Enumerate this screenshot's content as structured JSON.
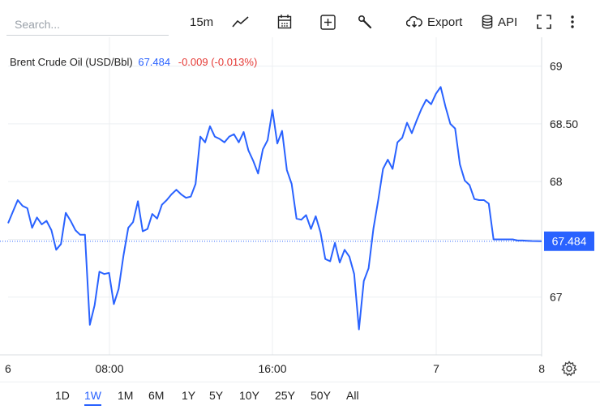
{
  "toolbar": {
    "search_placeholder": "Search...",
    "interval": "15m",
    "export_label": "Export",
    "api_label": "API"
  },
  "legend": {
    "name": "Brent Crude Oil (USD/Bbl)",
    "price": "67.484",
    "change": "-0.009 (-0.013%)"
  },
  "ranges": [
    "1D",
    "1W",
    "1M",
    "6M",
    "1Y",
    "5Y",
    "10Y",
    "25Y",
    "50Y",
    "All"
  ],
  "active_range": "1W",
  "colors": {
    "line": "#2962ff",
    "accent": "#2962ff",
    "negative": "#e53935",
    "grid": "#eceff2"
  },
  "chart_data": {
    "type": "line",
    "ylim": [
      66.5,
      69.25
    ],
    "y_ticks": [
      67,
      67.5,
      68,
      68.5,
      69
    ],
    "y_tick_labels": [
      "67",
      "",
      "68",
      "68.50",
      "69"
    ],
    "x_tick_labels": [
      "6",
      "08:00",
      "16:00",
      "7",
      "8"
    ],
    "last_value": 67.484,
    "last_value_label": "67.484",
    "grid": true,
    "series": [
      {
        "values": [
          67.64,
          67.74,
          67.84,
          67.79,
          67.77,
          67.6,
          67.69,
          67.63,
          67.66,
          67.58,
          67.41,
          67.46,
          67.73,
          67.66,
          67.58,
          67.54,
          67.54,
          66.76,
          66.93,
          67.22,
          67.2,
          67.21,
          66.94,
          67.07,
          67.36,
          67.6,
          67.65,
          67.83,
          67.57,
          67.59,
          67.72,
          67.68,
          67.8,
          67.84,
          67.89,
          67.93,
          67.89,
          67.86,
          67.87,
          67.98,
          68.39,
          68.34,
          68.48,
          68.39,
          68.37,
          68.34,
          68.39,
          68.41,
          68.34,
          68.43,
          68.27,
          68.18,
          68.07,
          68.28,
          68.36,
          68.62,
          68.33,
          68.44,
          68.1,
          67.98,
          67.68,
          67.67,
          67.71,
          67.59,
          67.7,
          67.56,
          67.33,
          67.31,
          67.47,
          67.3,
          67.41,
          67.35,
          67.2,
          66.72,
          67.14,
          67.25,
          67.59,
          67.84,
          68.11,
          68.19,
          68.11,
          68.34,
          68.38,
          68.51,
          68.42,
          68.53,
          68.63,
          68.71,
          68.67,
          68.76,
          68.82,
          68.65,
          68.5,
          68.46,
          68.15,
          68.01,
          67.97,
          67.85,
          67.84,
          67.84,
          67.81,
          67.5,
          67.5,
          67.5,
          67.5,
          67.5,
          67.49,
          67.49,
          67.488,
          67.486,
          67.485,
          67.484
        ]
      }
    ]
  }
}
